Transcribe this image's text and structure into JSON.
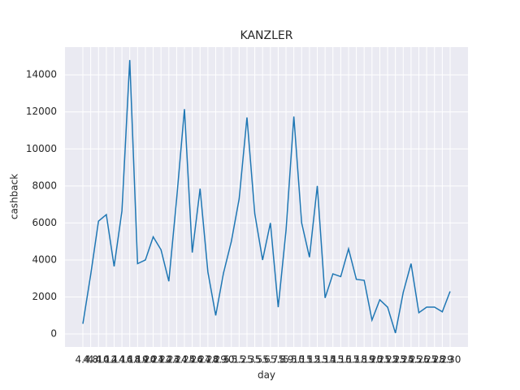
{
  "chart_data": {
    "type": "line",
    "title": "KANZLER",
    "x_label": "day",
    "y_label": "cashback",
    "categories": [
      "4.4",
      "4.8",
      "4.10",
      "4.12",
      "4.14",
      "4.16",
      "4.18",
      "4.19",
      "4.20",
      "4.21",
      "4.22",
      "4.23",
      "4.24",
      "4.25",
      "4.26",
      "4.27",
      "4.28",
      "4.29",
      "4.30",
      "5.1",
      "5.2",
      "5.3",
      "5.5",
      "5.6",
      "5.7",
      "5.8",
      "5.9",
      "5.10",
      "5.11",
      "5.12",
      "5.13",
      "5.14",
      "5.15",
      "5.16",
      "5.17",
      "5.18",
      "5.19",
      "5.20",
      "5.21",
      "5.22",
      "5.23",
      "5.24",
      "5.25",
      "5.26",
      "5.27",
      "5.28",
      "5.29",
      "5.30"
    ],
    "series": [
      {
        "name": "cashback",
        "color": "#1f77b4",
        "values": [
          550,
          3200,
          6100,
          6450,
          3650,
          6650,
          14800,
          3800,
          4000,
          5250,
          4550,
          2850,
          7300,
          12150,
          4400,
          7850,
          3350,
          1000,
          3300,
          5000,
          7300,
          11700,
          6500,
          4000,
          6000,
          1450,
          5600,
          11750,
          6000,
          4150,
          8000,
          1950,
          3250,
          3100,
          4600,
          2950,
          2900,
          750,
          1850,
          1450,
          50,
          2250,
          3800,
          1150,
          1450,
          1450,
          1200,
          2300
        ]
      }
    ],
    "ylim": [
      -700,
      15500
    ],
    "yticks": [
      0,
      2000,
      4000,
      6000,
      8000,
      10000,
      12000,
      14000
    ],
    "grid": true
  }
}
